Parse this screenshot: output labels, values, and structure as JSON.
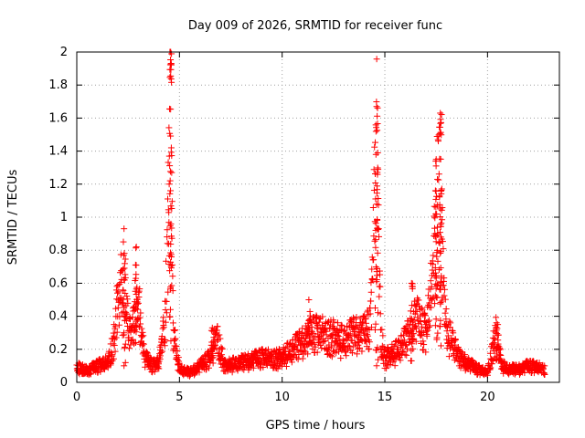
{
  "chart_data": {
    "type": "scatter",
    "title": "Day 009 of 2026, SRMTID for receiver func",
    "xlabel": "GPS time / hours",
    "ylabel": "SRMTID / TECUs",
    "xlim": [
      0,
      23.5
    ],
    "ylim": [
      0,
      2
    ],
    "x_ticks": [
      0,
      5,
      10,
      15,
      20
    ],
    "x_tick_labels": [
      "0",
      "5",
      "10",
      "15",
      "20"
    ],
    "y_ticks": [
      0,
      0.2,
      0.4,
      0.6,
      0.8,
      1,
      1.2,
      1.4,
      1.6,
      1.8,
      2
    ],
    "y_tick_labels": [
      "0",
      "0.2",
      "0.4",
      "0.6",
      "0.8",
      "1",
      "1.2",
      "1.4",
      "1.6",
      "1.8",
      "2"
    ],
    "grid": true,
    "marker": "+",
    "series": [
      {
        "name": "SRMTID",
        "color": "#ff0000",
        "profile_x": [
          0,
          0.5,
          1.0,
          1.5,
          1.8,
          2.0,
          2.2,
          2.4,
          2.6,
          2.8,
          3.0,
          3.3,
          3.7,
          4.0,
          4.3,
          4.5,
          4.55,
          4.7,
          5.0,
          5.5,
          6.0,
          6.5,
          6.8,
          7.2,
          8.0,
          9.0,
          10.0,
          10.5,
          11.0,
          11.5,
          12.0,
          12.5,
          13.0,
          13.5,
          14.0,
          14.3,
          14.6,
          14.8,
          15.0,
          15.5,
          16.0,
          16.5,
          17.0,
          17.3,
          17.6,
          17.8,
          18.0,
          18.3,
          18.6,
          19.0,
          19.5,
          20.0,
          20.4,
          20.7,
          21.0,
          21.5,
          22.0,
          22.5,
          22.8
        ],
        "profile_y": [
          0.1,
          0.07,
          0.1,
          0.12,
          0.25,
          0.5,
          0.6,
          0.45,
          0.3,
          0.35,
          0.5,
          0.15,
          0.1,
          0.12,
          0.4,
          1.2,
          2.0,
          0.3,
          0.08,
          0.06,
          0.1,
          0.15,
          0.3,
          0.1,
          0.12,
          0.15,
          0.15,
          0.2,
          0.25,
          0.3,
          0.3,
          0.28,
          0.25,
          0.3,
          0.3,
          0.35,
          1.5,
          0.3,
          0.15,
          0.18,
          0.25,
          0.4,
          0.3,
          0.6,
          1.3,
          0.8,
          0.3,
          0.25,
          0.15,
          0.12,
          0.08,
          0.06,
          0.3,
          0.1,
          0.08,
          0.08,
          0.1,
          0.09,
          0.08
        ],
        "peaks": [
          {
            "x": 2.3,
            "y": 0.93
          },
          {
            "x": 2.9,
            "y": 0.82
          },
          {
            "x": 4.55,
            "y": 2.0
          },
          {
            "x": 14.6,
            "y": 1.67
          },
          {
            "x": 17.5,
            "y": 1.35
          },
          {
            "x": 17.7,
            "y": 1.63
          },
          {
            "x": 16.3,
            "y": 0.6
          },
          {
            "x": 6.6,
            "y": 0.33
          },
          {
            "x": 11.3,
            "y": 0.5
          },
          {
            "x": 20.5,
            "y": 0.35
          }
        ]
      }
    ]
  }
}
